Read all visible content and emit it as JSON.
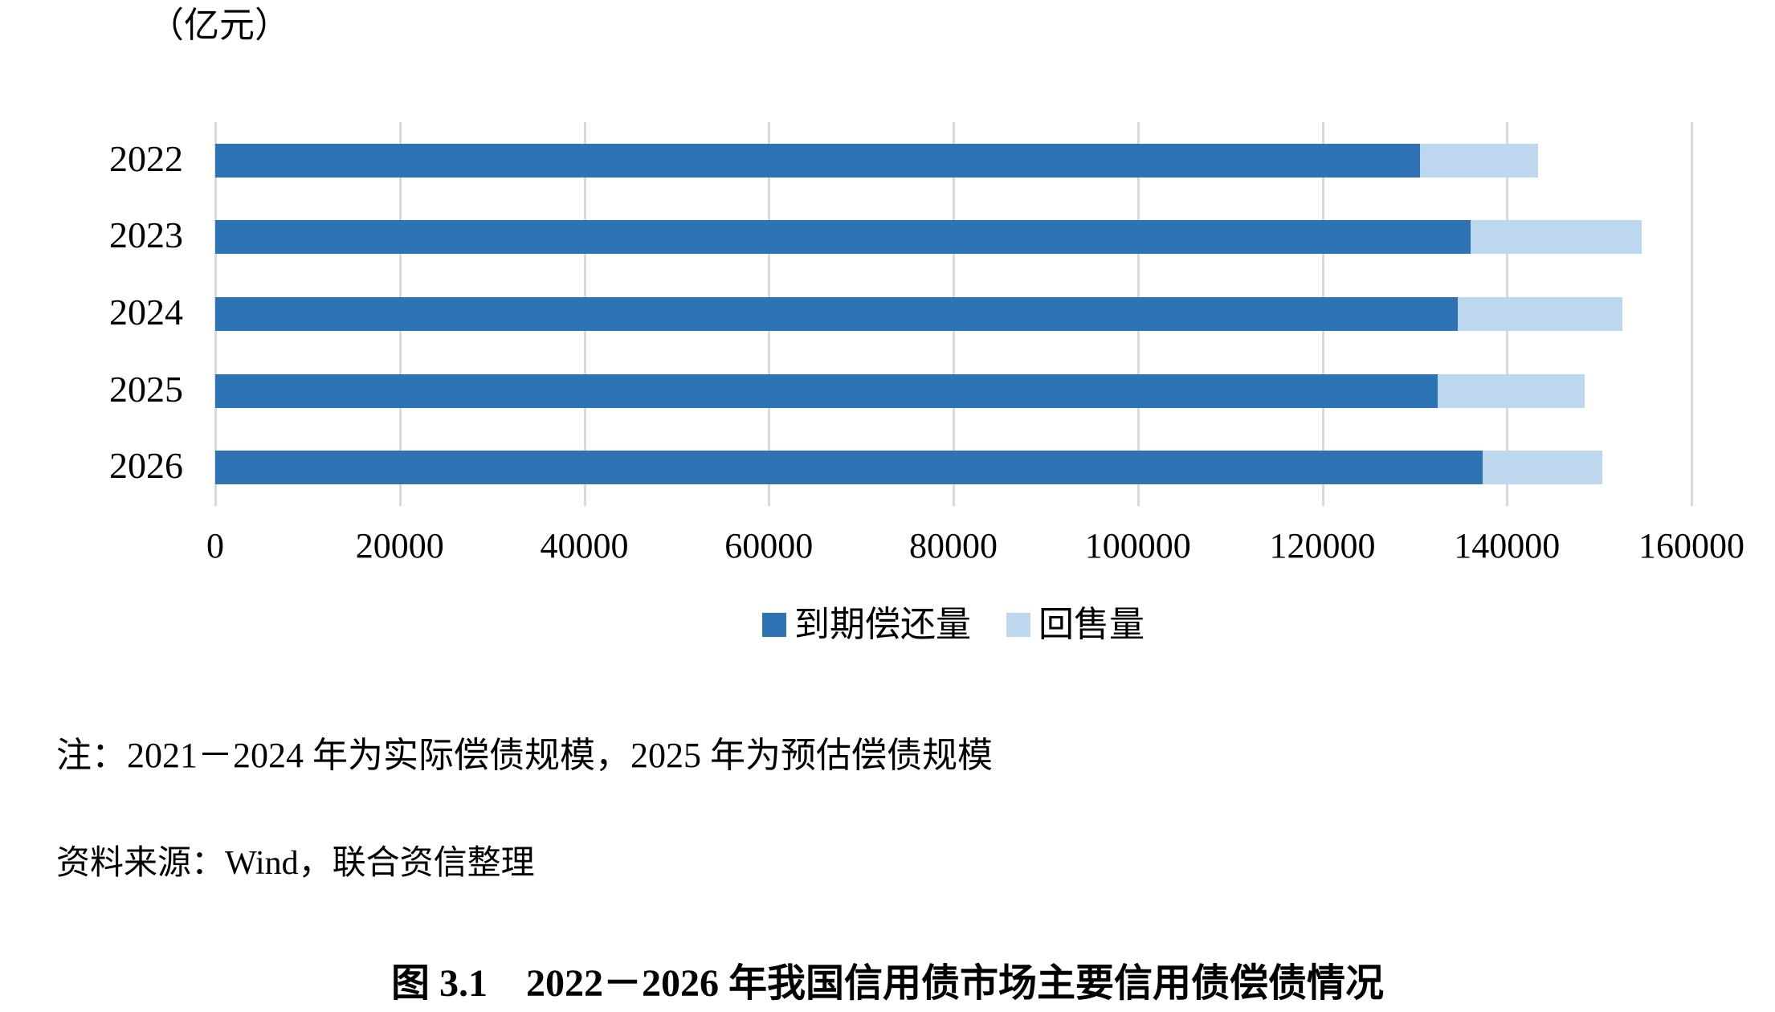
{
  "unit_label": "（亿元）",
  "chart_data": {
    "type": "bar",
    "orientation": "horizontal",
    "stacked": true,
    "categories": [
      "2022",
      "2023",
      "2024",
      "2025",
      "2026"
    ],
    "series": [
      {
        "name": "到期偿还量",
        "color": "#2E74B5",
        "values": [
          130600,
          136100,
          134700,
          132500,
          137400
        ]
      },
      {
        "name": "回售量",
        "color": "#BDD7EE",
        "values": [
          12800,
          18500,
          17800,
          15900,
          12900
        ]
      }
    ],
    "totals": [
      143400,
      154600,
      152500,
      148400,
      150300
    ],
    "unit": "亿元",
    "xlim": [
      0,
      160000
    ],
    "x_ticks": [
      0,
      20000,
      40000,
      60000,
      80000,
      100000,
      120000,
      140000,
      160000
    ],
    "grid": "vertical",
    "gridline_color": "#d9d9d9",
    "legend_position": "bottom",
    "title": "图 3.1　2022－2026 年我国信用债市场主要信用债偿债情况"
  },
  "notes": {
    "note": "注：2021－2024 年为实际偿债规模，2025 年为预估偿债规模",
    "source": "资料来源：Wind，联合资信整理"
  },
  "caption": "图 3.1　2022－2026 年我国信用债市场主要信用债偿债情况"
}
